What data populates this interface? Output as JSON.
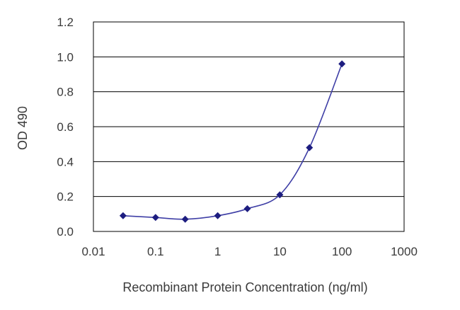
{
  "chart_data": {
    "type": "line",
    "xscale": "log",
    "xlabel": "Recombinant Protein Concentration (ng/ml)",
    "ylabel": "OD 490",
    "xlim": [
      0.01,
      1000
    ],
    "ylim": [
      0,
      1.2
    ],
    "x_ticks": [
      "0.01",
      "0.1",
      "1",
      "10",
      "100",
      "1000"
    ],
    "y_ticks": [
      "0.0",
      "0.2",
      "0.4",
      "0.6",
      "0.8",
      "1.0",
      "1.2"
    ],
    "grid": "horizontal",
    "legend": "none",
    "series": [
      {
        "x": [
          0.03,
          0.1,
          0.3,
          1,
          3,
          10,
          30,
          100
        ],
        "y": [
          0.09,
          0.08,
          0.07,
          0.09,
          0.13,
          0.21,
          0.48,
          0.96
        ]
      }
    ],
    "colors": {
      "line": "#3f3fa6",
      "marker": "#1d1d80",
      "grid": "#000000",
      "axis_text": "#3a3a3a"
    }
  }
}
